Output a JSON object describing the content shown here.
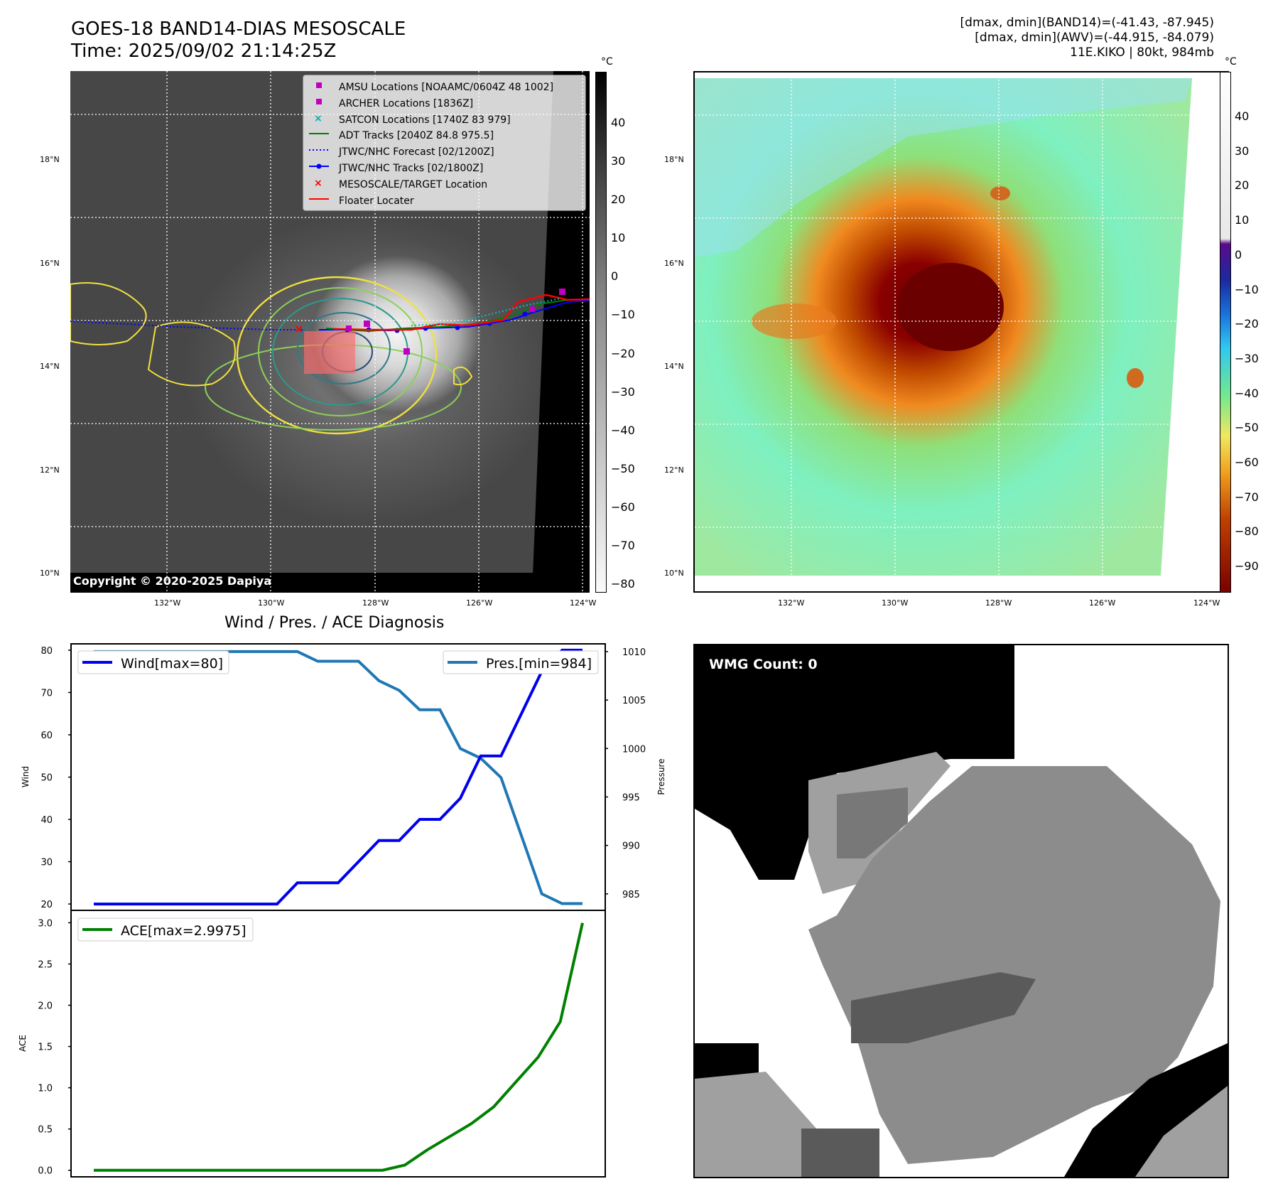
{
  "header": {
    "title": "GOES-18 BAND14-DIAS MESOSCALE",
    "time": "Time: 2025/09/02 21:14:25Z",
    "info_line1": "[dmax, dmin](BAND14)=(-41.43, -87.945)",
    "info_line2": "[dmax, dmin](AWV)=(-44.915, -84.079)",
    "info_line3": "11E.KIKO | 80kt, 984mb"
  },
  "map_axes": {
    "lat_labels": [
      "18°N",
      "16°N",
      "14°N",
      "12°N",
      "10°N"
    ],
    "lon_labels": [
      "132°W",
      "130°W",
      "128°W",
      "126°W",
      "124°W"
    ]
  },
  "colorbar_ir": {
    "unit": "°C",
    "ticks": [
      "40",
      "30",
      "20",
      "10",
      "0",
      "−10",
      "−20",
      "−30",
      "−40",
      "−50",
      "−60",
      "−70",
      "−80"
    ]
  },
  "colorbar_awv": {
    "unit": "°C",
    "ticks": [
      "40",
      "30",
      "20",
      "10",
      "0",
      "−10",
      "−20",
      "−30",
      "−40",
      "−50",
      "−60",
      "−70",
      "−80",
      "−90"
    ]
  },
  "legend": {
    "items": [
      {
        "label": "AMSU Locations [NOAAMC/0604Z 48 1002]",
        "color": "#c000c0",
        "marker": "square"
      },
      {
        "label": "ARCHER Locations [1836Z]",
        "color": "#c000c0",
        "marker": "square"
      },
      {
        "label": "SATCON Locations [1740Z 83 979]",
        "color": "#00b0b0",
        "marker": "x"
      },
      {
        "label": "ADT Tracks [2040Z 84.8 975.5]",
        "color": "#008000",
        "marker": "line"
      },
      {
        "label": "JTWC/NHC Forecast [02/1200Z]",
        "color": "#0000ff",
        "marker": "dotted"
      },
      {
        "label": "JTWC/NHC Tracks [02/1800Z]",
        "color": "#0000ff",
        "marker": "line-dot"
      },
      {
        "label": "MESOSCALE/TARGET Location",
        "color": "#ff0000",
        "marker": "x"
      },
      {
        "label": "Floater Locater",
        "color": "#ff0000",
        "marker": "line"
      }
    ]
  },
  "copyright": "Copyright © 2020-2025 Dapiya",
  "wmg": {
    "label": "WMG Count: 0"
  },
  "chart_data": [
    {
      "type": "line",
      "title": "Wind / Pres. / ACE Diagnosis",
      "ylabel": "Wind",
      "ylabel_right": "Pressure",
      "ylim": [
        18.5,
        81.5
      ],
      "ylim_right": [
        983.3,
        1010.8
      ],
      "yticks": [
        20,
        30,
        40,
        50,
        60,
        70,
        80
      ],
      "yticks_right": [
        985,
        990,
        995,
        1000,
        1005,
        1010
      ],
      "x": [
        0,
        1,
        2,
        3,
        4,
        5,
        6,
        7,
        8,
        9,
        10,
        11,
        12,
        13,
        14,
        15,
        16,
        17,
        18,
        19,
        20,
        21,
        22,
        23,
        24
      ],
      "series": [
        {
          "name": "Wind",
          "legend": "Wind[max=80]",
          "color": "#0000ee",
          "values": [
            20,
            20,
            20,
            20,
            20,
            20,
            20,
            20,
            20,
            20,
            25,
            25,
            25,
            30,
            35,
            35,
            40,
            40,
            45,
            55,
            55,
            65,
            75,
            80,
            80
          ]
        },
        {
          "name": "Pres.",
          "legend": "Pres.[min=984]",
          "color": "#1f77b4",
          "values": [
            1010,
            1010,
            1010,
            1010,
            1010,
            1010,
            1010,
            1010,
            1010,
            1010,
            1010,
            1009,
            1009,
            1009,
            1007,
            1006,
            1004,
            1004,
            1000,
            999,
            997,
            991,
            985,
            984,
            984
          ]
        }
      ]
    },
    {
      "type": "line",
      "ylabel": "ACE",
      "ylim": [
        -0.08,
        3.15
      ],
      "yticks": [
        0.0,
        0.5,
        1.0,
        1.5,
        2.0,
        2.5,
        3.0
      ],
      "ytick_labels": [
        "0.0",
        "0.5",
        "1.0",
        "1.5",
        "2.0",
        "2.5",
        "3.0"
      ],
      "x": [
        0,
        1,
        2,
        3,
        4,
        5,
        6,
        7,
        8,
        9,
        10,
        11,
        12,
        13,
        14,
        15,
        16,
        17,
        18,
        19,
        20,
        21,
        22
      ],
      "series": [
        {
          "name": "ACE",
          "legend": "ACE[max=2.9975]",
          "color": "#008000",
          "values": [
            0,
            0,
            0,
            0,
            0,
            0,
            0,
            0,
            0,
            0,
            0,
            0,
            0,
            0,
            0.0625,
            0.245,
            0.405,
            0.565,
            0.7675,
            1.07,
            1.37,
            1.8,
            2.9975
          ]
        }
      ]
    }
  ]
}
